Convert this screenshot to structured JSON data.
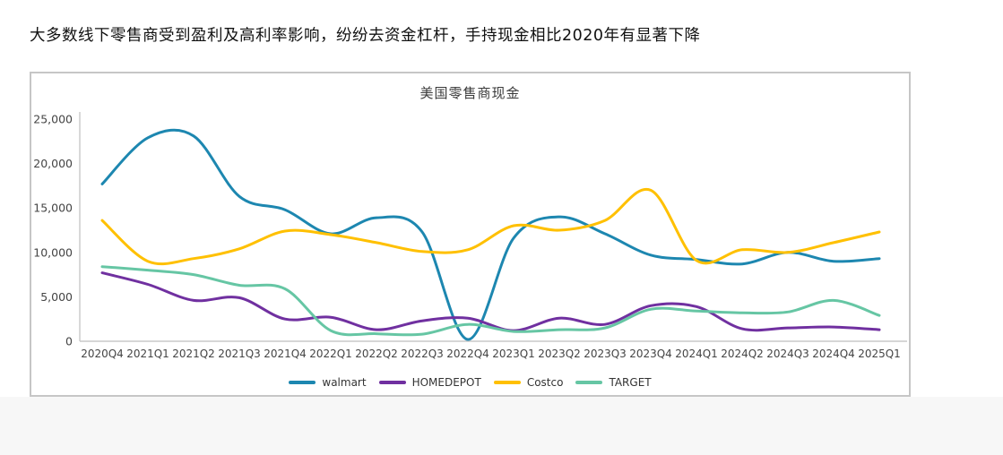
{
  "page": {
    "headline": "大多数线下零售商受到盈利及高利率影响，纷纷去资金杠杆，手持现金相比2020年有显著下降"
  },
  "chart_data": {
    "type": "line",
    "title": "美国零售商现金",
    "xlabel": "",
    "ylabel": "",
    "ylim": [
      0,
      25000
    ],
    "yticks": [
      "0",
      "5,000",
      "10,000",
      "15,000",
      "20,000",
      "25,000"
    ],
    "grid": false,
    "legend_position": "bottom",
    "line_style": "smooth",
    "axis_color": "#c9c9c9",
    "tick_label_color": "#444444",
    "categories": [
      "2020Q4",
      "2021Q1",
      "2021Q2",
      "2021Q3",
      "2021Q4",
      "2022Q1",
      "2022Q2",
      "2022Q3",
      "2022Q4",
      "2023Q1",
      "2023Q2",
      "2023Q3",
      "2023Q4",
      "2024Q1",
      "2024Q2",
      "2024Q3",
      "2024Q4",
      "2025Q1"
    ],
    "series": [
      {
        "name": "walmart",
        "color": "#1d87b0",
        "values": [
          17700,
          22900,
          23100,
          16300,
          14800,
          12100,
          13900,
          12300,
          200,
          11600,
          14000,
          12100,
          9700,
          9200,
          8700,
          10000,
          9000,
          9300
        ]
      },
      {
        "name": "HOMEDEPOT",
        "color": "#7030a0",
        "values": [
          7700,
          6400,
          4600,
          4900,
          2500,
          2700,
          1300,
          2300,
          2600,
          1200,
          2600,
          1900,
          4000,
          3900,
          1400,
          1500,
          1600,
          1300
        ]
      },
      {
        "name": "Costco",
        "color": "#ffc000",
        "values": [
          13600,
          9000,
          9300,
          10400,
          12400,
          12000,
          11100,
          10100,
          10300,
          13000,
          12500,
          13600,
          17000,
          9100,
          10300,
          10000,
          11100,
          12300
        ]
      },
      {
        "name": "TARGET",
        "color": "#66c6a4",
        "values": [
          8400,
          8000,
          7500,
          6300,
          5900,
          1200,
          850,
          800,
          1900,
          1100,
          1300,
          1500,
          3600,
          3400,
          3200,
          3300,
          4600,
          2900
        ]
      }
    ]
  }
}
